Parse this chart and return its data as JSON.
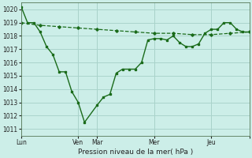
{
  "xlabel": "Pression niveau de la mer( hPa )",
  "bg_color": "#cceee8",
  "grid_color": "#aad4cc",
  "line_color": "#1a6b1a",
  "ylim": [
    1010.5,
    1020.5
  ],
  "yticks": [
    1011,
    1012,
    1013,
    1014,
    1015,
    1016,
    1017,
    1018,
    1019,
    1020
  ],
  "xlim": [
    0,
    288
  ],
  "xtick_pos": [
    0,
    72,
    96,
    168,
    240,
    288
  ],
  "xtick_labels": [
    "Lun",
    "Ven",
    "Mar",
    "Mer",
    "Jeu",
    ""
  ],
  "vlines": [
    0,
    72,
    96,
    168,
    240,
    288
  ],
  "solid_x": [
    0,
    8,
    16,
    24,
    32,
    40,
    48,
    56,
    64,
    72,
    80,
    96,
    104,
    112,
    120,
    128,
    136,
    144,
    152,
    160,
    168,
    176,
    184,
    192,
    200,
    208,
    216,
    224,
    232,
    240,
    248,
    256,
    264,
    272,
    280,
    288
  ],
  "solid_y": [
    1020.2,
    1019.0,
    1019.0,
    1018.3,
    1017.2,
    1016.6,
    1015.3,
    1015.3,
    1013.8,
    1013.0,
    1011.5,
    1012.8,
    1013.4,
    1013.6,
    1015.2,
    1015.5,
    1015.5,
    1015.5,
    1016.0,
    1017.7,
    1017.8,
    1017.8,
    1017.7,
    1018.0,
    1017.5,
    1017.2,
    1017.2,
    1017.4,
    1018.2,
    1018.5,
    1018.5,
    1019.0,
    1019.0,
    1018.5,
    1018.3,
    1018.3
  ],
  "dashed_x": [
    0,
    24,
    48,
    72,
    96,
    120,
    144,
    168,
    192,
    216,
    240,
    264,
    288
  ],
  "dashed_y": [
    1019.0,
    1018.8,
    1018.7,
    1018.6,
    1018.5,
    1018.4,
    1018.3,
    1018.2,
    1018.2,
    1018.1,
    1018.1,
    1018.2,
    1018.3
  ]
}
